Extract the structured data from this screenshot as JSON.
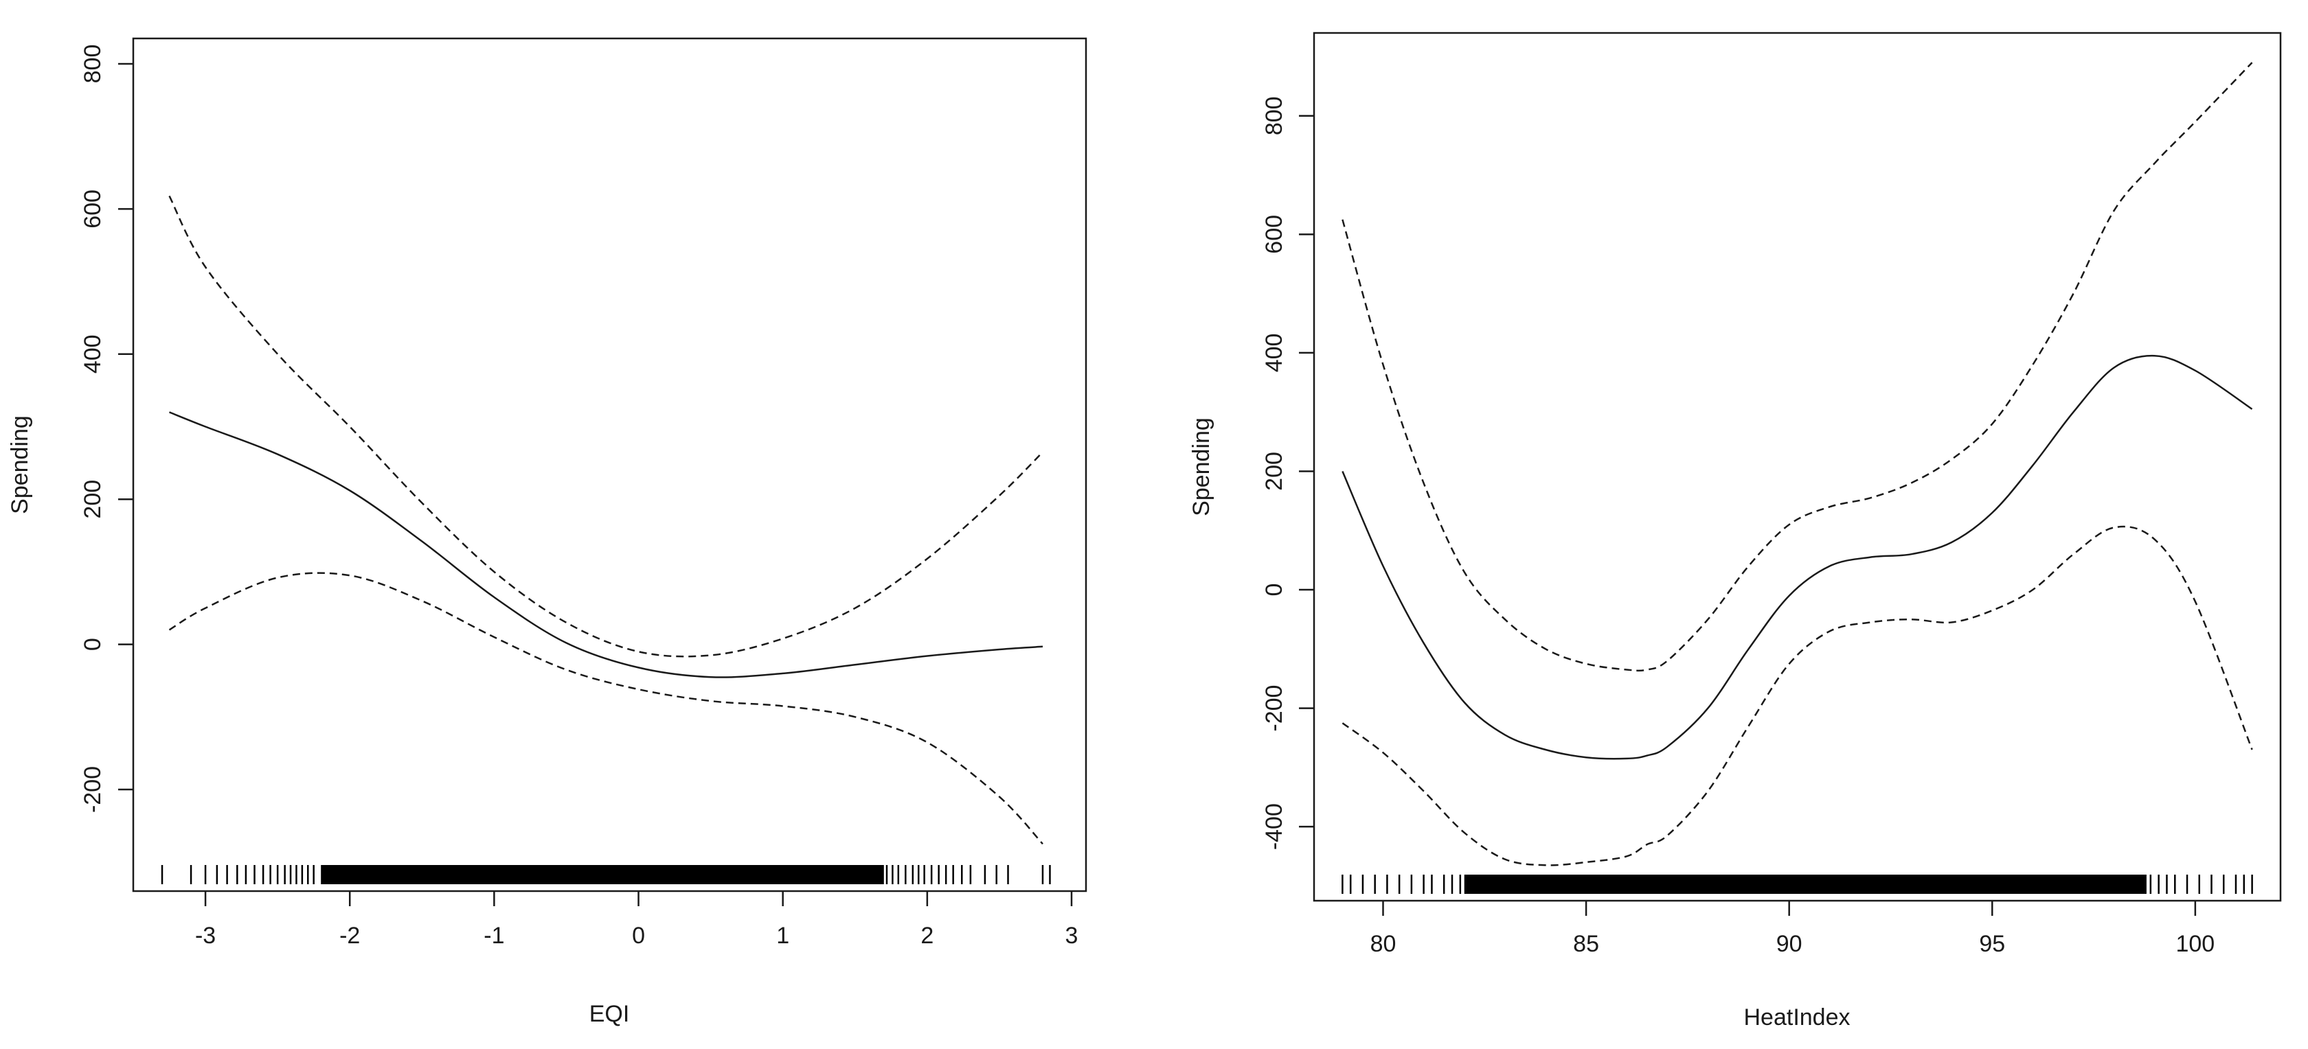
{
  "chart_data": [
    {
      "type": "line",
      "title": "",
      "xlabel": "EQI",
      "ylabel": "Spending",
      "xlim": [
        -3.5,
        3.1
      ],
      "ylim": [
        -340,
        835
      ],
      "xticks": [
        -3,
        -2,
        -1,
        0,
        1,
        2,
        3
      ],
      "xtick_labels": [
        "-3",
        "-2",
        "-1",
        "0",
        "1",
        "2",
        "3"
      ],
      "yticks": [
        -200,
        0,
        200,
        400,
        600,
        800
      ],
      "ytick_labels": [
        "-200",
        "0",
        "200",
        "400",
        "600",
        "800"
      ],
      "grid": false,
      "legend": "none",
      "rug": {
        "min": -3.3,
        "max": 2.85,
        "dense_from": -2.2,
        "dense_to": 1.7,
        "sparse_left": [
          -3.3,
          -3.1,
          -3.0,
          -2.92,
          -2.85,
          -2.78,
          -2.72,
          -2.66,
          -2.6,
          -2.55,
          -2.5,
          -2.45,
          -2.41,
          -2.37,
          -2.33,
          -2.29,
          -2.25
        ],
        "sparse_right": [
          1.72,
          1.76,
          1.8,
          1.85,
          1.9,
          1.94,
          1.98,
          2.03,
          2.08,
          2.13,
          2.18,
          2.24,
          2.3,
          2.4,
          2.48,
          2.56,
          2.8,
          2.85
        ]
      },
      "series": [
        {
          "style": "solid",
          "x": [
            -3.25,
            -3.0,
            -2.5,
            -2.0,
            -1.5,
            -1.0,
            -0.5,
            0.0,
            0.5,
            1.0,
            1.5,
            2.0,
            2.5,
            2.8
          ],
          "y": [
            320,
            300,
            262,
            212,
            142,
            65,
            2,
            -32,
            -45,
            -40,
            -28,
            -16,
            -7,
            -3
          ]
        },
        {
          "style": "dashed",
          "x": [
            -3.25,
            -3.0,
            -2.5,
            -2.0,
            -1.5,
            -1.0,
            -0.5,
            0.0,
            0.5,
            1.0,
            1.5,
            2.0,
            2.5,
            2.8
          ],
          "y": [
            618,
            520,
            400,
            300,
            195,
            100,
            30,
            -10,
            -15,
            8,
            50,
            118,
            205,
            265
          ]
        },
        {
          "style": "dashed",
          "x": [
            -3.25,
            -3.0,
            -2.5,
            -2.0,
            -1.5,
            -1.0,
            -0.5,
            0.0,
            0.5,
            1.0,
            1.5,
            2.0,
            2.5,
            2.8
          ],
          "y": [
            20,
            50,
            92,
            95,
            60,
            10,
            -35,
            -62,
            -78,
            -85,
            -100,
            -135,
            -210,
            -275
          ]
        }
      ]
    },
    {
      "type": "line",
      "title": "",
      "xlabel": "HeatIndex",
      "ylabel": "Spending",
      "xlim": [
        78.3,
        102.1
      ],
      "ylim": [
        -525,
        940
      ],
      "xticks": [
        80,
        85,
        90,
        95,
        100
      ],
      "xtick_labels": [
        "80",
        "85",
        "90",
        "95",
        "100"
      ],
      "yticks": [
        -400,
        -200,
        0,
        200,
        400,
        600,
        800
      ],
      "ytick_labels": [
        "-400",
        "-200",
        "0",
        "200",
        "400",
        "600",
        "800"
      ],
      "grid": false,
      "legend": "none",
      "rug": {
        "min": 79.0,
        "max": 101.4,
        "dense_from": 82.0,
        "dense_to": 98.8,
        "sparse_left": [
          79.0,
          79.2,
          79.5,
          79.8,
          80.1,
          80.4,
          80.7,
          81.0,
          81.2,
          81.5,
          81.7,
          81.9
        ],
        "sparse_right": [
          98.9,
          99.1,
          99.3,
          99.5,
          99.8,
          100.1,
          100.4,
          100.7,
          101.0,
          101.2,
          101.4
        ]
      },
      "series": [
        {
          "style": "solid",
          "x": [
            79.0,
            80.0,
            81.0,
            82.0,
            83.0,
            84.0,
            85.0,
            86.0,
            86.5,
            87.0,
            88.0,
            89.0,
            90.0,
            91.0,
            92.0,
            93.0,
            94.0,
            95.0,
            96.0,
            97.0,
            98.0,
            99.0,
            100.0,
            101.4
          ],
          "y": [
            200,
            40,
            -90,
            -190,
            -245,
            -270,
            -283,
            -285,
            -280,
            -265,
            -200,
            -100,
            -10,
            40,
            55,
            60,
            80,
            130,
            210,
            300,
            375,
            395,
            370,
            305
          ]
        },
        {
          "style": "dashed",
          "x": [
            79.0,
            80.0,
            81.0,
            82.0,
            83.0,
            84.0,
            85.0,
            86.0,
            86.5,
            87.0,
            88.0,
            89.0,
            90.0,
            91.0,
            92.0,
            93.0,
            94.0,
            95.0,
            96.0,
            97.0,
            98.0,
            99.0,
            100.0,
            101.4
          ],
          "y": [
            625,
            380,
            180,
            30,
            -50,
            -100,
            -125,
            -135,
            -135,
            -120,
            -50,
            40,
            110,
            140,
            155,
            180,
            220,
            280,
            380,
            500,
            640,
            720,
            790,
            890
          ]
        },
        {
          "style": "dashed",
          "x": [
            79.0,
            80.0,
            81.0,
            82.0,
            83.0,
            84.0,
            85.0,
            86.0,
            86.5,
            87.0,
            88.0,
            89.0,
            90.0,
            91.0,
            92.0,
            93.0,
            94.0,
            95.0,
            96.0,
            97.0,
            98.0,
            99.0,
            100.0,
            101.4
          ],
          "y": [
            -225,
            -275,
            -340,
            -410,
            -455,
            -465,
            -460,
            -450,
            -430,
            -415,
            -340,
            -230,
            -125,
            -70,
            -55,
            -50,
            -55,
            -35,
            0,
            60,
            105,
            85,
            -20,
            -270
          ]
        }
      ]
    }
  ]
}
